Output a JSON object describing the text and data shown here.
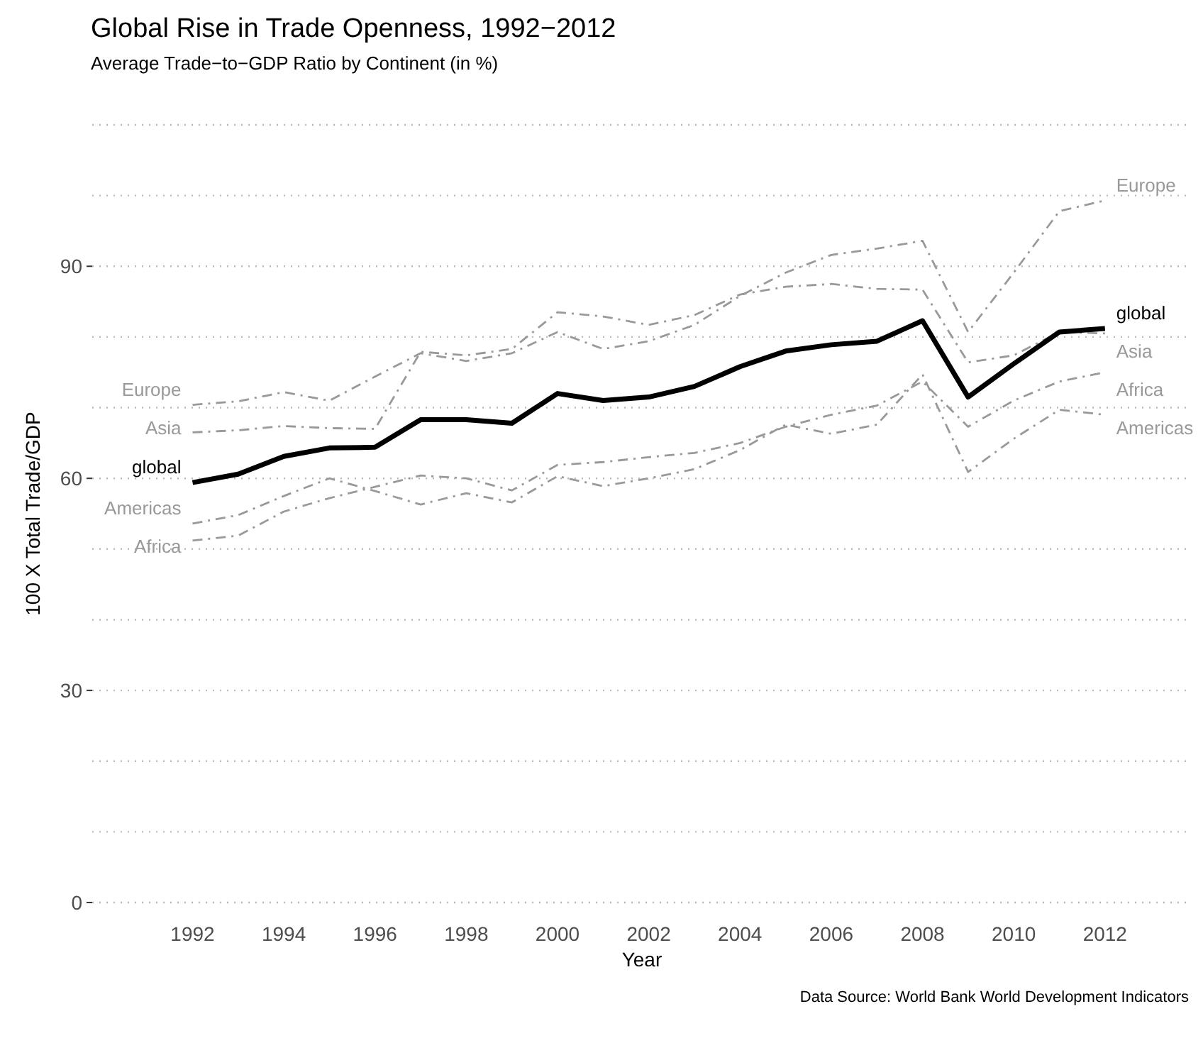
{
  "chart_data": {
    "type": "line",
    "title": "Global Rise in Trade Openness, 1992−2012",
    "subtitle": "Average Trade−to−GDP Ratio by Continent (in %)",
    "xlabel": "Year",
    "ylabel": "100 X Total Trade/GDP",
    "annotations": [
      "Data Source: World Bank World Development Indicators"
    ],
    "x": [
      1992,
      1993,
      1994,
      1995,
      1996,
      1997,
      1998,
      1999,
      2000,
      2001,
      2002,
      2003,
      2004,
      2005,
      2006,
      2007,
      2008,
      2009,
      2010,
      2011,
      2012
    ],
    "series": [
      {
        "name": "Europe",
        "color": "#999999",
        "line_style": "dashdot",
        "values": [
          70.4,
          70.9,
          72.2,
          71.0,
          74.4,
          77.7,
          76.6,
          77.7,
          80.7,
          78.3,
          79.4,
          81.7,
          85.8,
          89.1,
          91.6,
          92.5,
          93.6,
          80.7,
          89.1,
          97.8,
          99.3
        ]
      },
      {
        "name": "Asia",
        "color": "#999999",
        "line_style": "dashdot",
        "values": [
          66.5,
          66.8,
          67.4,
          67.1,
          67.0,
          77.9,
          77.4,
          78.3,
          83.5,
          82.9,
          81.7,
          83.1,
          86.0,
          87.1,
          87.5,
          86.8,
          86.7,
          76.4,
          77.4,
          80.7,
          80.5
        ]
      },
      {
        "name": "Americas",
        "color": "#999999",
        "line_style": "dashdot",
        "values": [
          53.6,
          54.8,
          57.5,
          60.0,
          58.2,
          56.3,
          57.9,
          56.6,
          60.3,
          58.9,
          60.0,
          61.3,
          64.0,
          67.6,
          66.3,
          67.6,
          74.7,
          60.9,
          65.6,
          69.7,
          69.0
        ]
      },
      {
        "name": "Africa",
        "color": "#999999",
        "line_style": "dashdot",
        "values": [
          51.2,
          51.9,
          55.3,
          57.2,
          58.8,
          60.4,
          60.0,
          58.3,
          61.9,
          62.3,
          63.0,
          63.6,
          65.0,
          67.3,
          69.0,
          70.3,
          73.7,
          67.3,
          71.0,
          73.7,
          75.0
        ]
      },
      {
        "name": "global",
        "color": "#000000",
        "line_style": "solid",
        "values": [
          59.4,
          60.6,
          63.1,
          64.3,
          64.4,
          68.3,
          68.3,
          67.8,
          72.0,
          71.0,
          71.5,
          73.0,
          75.8,
          78.0,
          78.9,
          79.4,
          82.3,
          71.5,
          76.2,
          80.7,
          81.2
        ]
      }
    ],
    "xlim": [
      1989.8,
      2013.9
    ],
    "xticks": [
      1992,
      1994,
      1996,
      1998,
      2000,
      2002,
      2004,
      2006,
      2008,
      2010,
      2012
    ],
    "ylim": [
      0,
      110
    ],
    "yticks": [
      0,
      {
        "value": 10,
        "label": null
      },
      {
        "value": 20,
        "label": null
      },
      30,
      {
        "value": 40,
        "label": null
      },
      {
        "value": 50,
        "label": null
      },
      60,
      {
        "value": 70,
        "label": null
      },
      {
        "value": 80,
        "label": null
      },
      90,
      {
        "value": 100,
        "label": null
      },
      {
        "value": 110,
        "label": null
      }
    ],
    "grid": "y",
    "marker": "none"
  }
}
